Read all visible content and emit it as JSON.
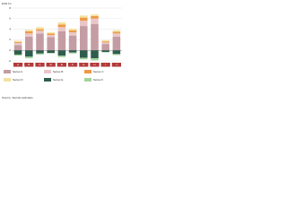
{
  "chart_data": {
    "type": "bar",
    "stacked": true,
    "y_label": "EUR bn",
    "source": "Source: internal estimates",
    "categories": [
      "A",
      "B",
      "C",
      "D",
      "E",
      "F",
      "G",
      "H",
      "I",
      "J"
    ],
    "series": [
      {
        "name": "Series A",
        "color": "#c49ca3",
        "values": [
          1.0,
          2.6,
          3.2,
          2.5,
          3.6,
          2.8,
          4.6,
          5.0,
          1.2,
          2.6
        ]
      },
      {
        "name": "Series B",
        "color": "#e9c7c9",
        "values": [
          0.4,
          0.6,
          0.5,
          0.4,
          0.8,
          0.6,
          1.0,
          1.0,
          0.3,
          0.6
        ]
      },
      {
        "name": "Series C",
        "color": "#ee9a45",
        "values": [
          0.2,
          0.4,
          0.3,
          0.3,
          0.5,
          0.4,
          0.6,
          0.5,
          0.2,
          0.3
        ]
      },
      {
        "name": "Series D",
        "color": "#f4e2a0",
        "values": [
          0.2,
          0.3,
          0.4,
          0.2,
          0.4,
          0.3,
          0.4,
          0.3,
          0.2,
          0.3
        ]
      },
      {
        "name": "Series E",
        "color": "#2f5d4d",
        "values": [
          -0.8,
          -1.2,
          -0.6,
          -0.5,
          -1.0,
          -0.4,
          -1.4,
          -1.5,
          -0.3,
          -0.7
        ]
      },
      {
        "name": "Series F",
        "color": "#a5d39d",
        "values": [
          -0.2,
          -0.3,
          -0.2,
          -0.1,
          -0.3,
          -0.2,
          -0.3,
          -0.4,
          -0.1,
          -0.2
        ]
      }
    ],
    "ylim": [
      -2,
      8
    ],
    "yticks": [
      -2,
      0,
      2,
      4,
      6,
      8
    ],
    "grid": true
  }
}
